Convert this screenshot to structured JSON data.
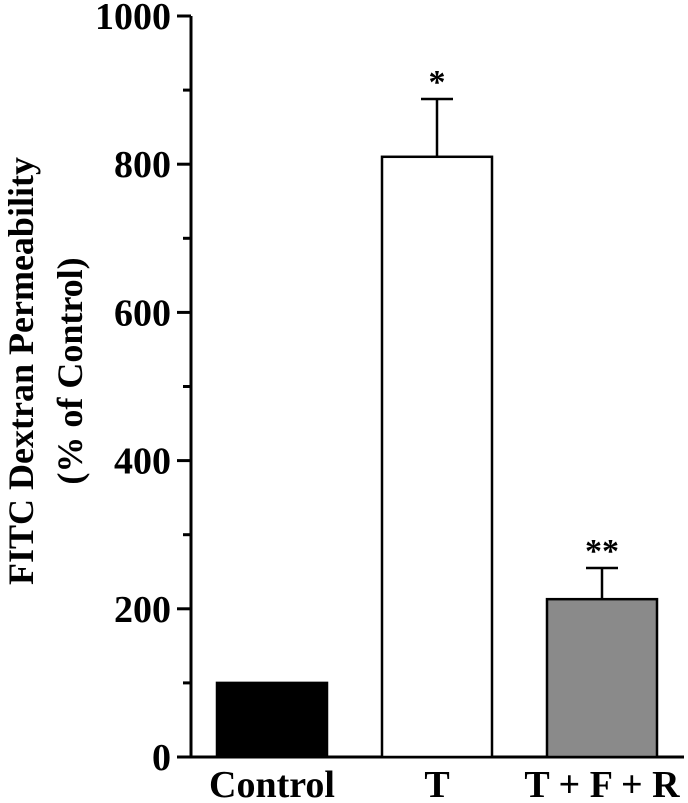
{
  "chart_data": {
    "type": "bar",
    "categories": [
      "Control",
      "T",
      "T + F + R"
    ],
    "values": [
      100,
      810,
      213
    ],
    "errors": [
      0,
      78,
      42
    ],
    "significance": [
      "",
      "*",
      "**"
    ],
    "bar_colors": [
      "#000000",
      "#ffffff",
      "#8a8a8a"
    ],
    "title": "",
    "ylabel_line1": "FITC  Dextran Permeability",
    "ylabel_line2": "(% of Control)",
    "ylim": [
      0,
      1000
    ],
    "yticks": [
      0,
      200,
      400,
      600,
      800,
      1000
    ],
    "y_minor_step": 100,
    "grid": false,
    "legend": "none"
  }
}
